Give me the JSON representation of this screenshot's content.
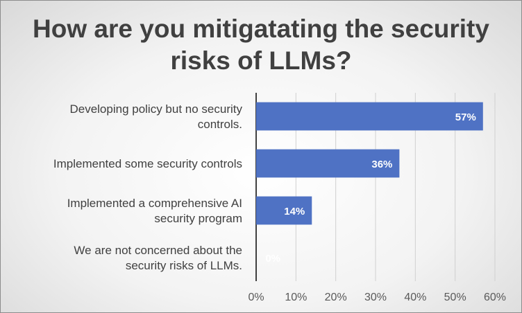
{
  "chart_data": {
    "type": "bar",
    "orientation": "horizontal",
    "title": "How are you mitigatating the security risks of LLMs?",
    "categories": [
      "Developing policy but no security controls.",
      "Implemented some security controls",
      "Implemented a comprehensive AI security program",
      "We are not concerned about the security risks of LLMs."
    ],
    "values": [
      57,
      36,
      14,
      0
    ],
    "data_labels": [
      "57%",
      "36%",
      "14%",
      "0%"
    ],
    "xlim": [
      0,
      60
    ],
    "x_ticks": [
      "0%",
      "10%",
      "20%",
      "30%",
      "40%",
      "50%",
      "60%"
    ],
    "grid": true,
    "bar_color": "#4f72c4",
    "label_color": "#ffffff"
  }
}
